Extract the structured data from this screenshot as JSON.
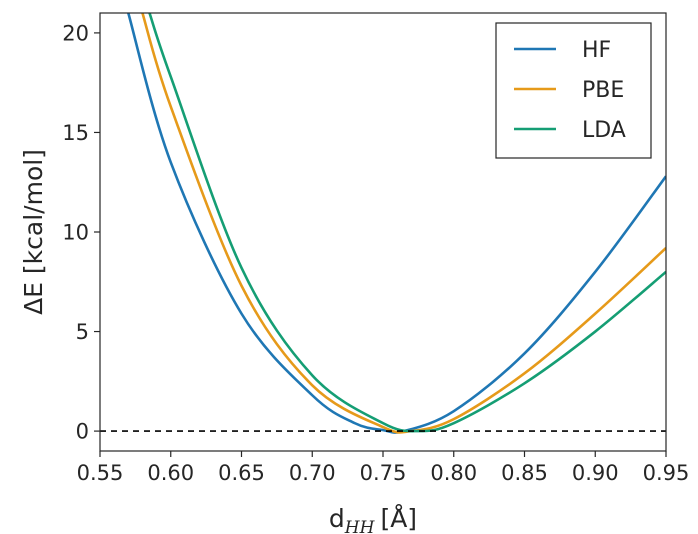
{
  "chart_data": {
    "type": "line",
    "title": "",
    "xlabel": "d",
    "xlabel_subscript": "HH",
    "xlabel_unit": "[Å]",
    "ylabel": "ΔE [kcal/mol]",
    "xlim": [
      0.55,
      0.95
    ],
    "ylim": [
      -1,
      21
    ],
    "xticks": [
      0.55,
      0.6,
      0.65,
      0.7,
      0.75,
      0.8,
      0.85,
      0.9,
      0.95
    ],
    "xtick_labels": [
      "0.55",
      "0.60",
      "0.65",
      "0.70",
      "0.75",
      "0.80",
      "0.85",
      "0.90",
      "0.95"
    ],
    "yticks": [
      0,
      5,
      10,
      15,
      20
    ],
    "ytick_labels": [
      "0",
      "5",
      "10",
      "15",
      "20"
    ],
    "grid": false,
    "legend_position": "top-right",
    "reference_line": {
      "y": 0,
      "style": "dashed",
      "color": "#000000"
    },
    "series": [
      {
        "name": "HF",
        "color": "#1f77b4",
        "x": [
          0.57,
          0.6,
          0.65,
          0.7,
          0.73,
          0.75,
          0.765,
          0.8,
          0.85,
          0.9,
          0.95
        ],
        "y": [
          21.0,
          13.5,
          5.9,
          1.8,
          0.4,
          0.05,
          0.0,
          1.0,
          3.9,
          8.0,
          12.8
        ]
      },
      {
        "name": "PBE",
        "color": "#e69a1a",
        "x": [
          0.58,
          0.6,
          0.65,
          0.7,
          0.75,
          0.77,
          0.8,
          0.85,
          0.9,
          0.95
        ],
        "y": [
          21.0,
          16.3,
          7.3,
          2.3,
          0.2,
          0.0,
          0.6,
          2.9,
          5.9,
          9.2
        ]
      },
      {
        "name": "LDA",
        "color": "#159e74",
        "x": [
          0.585,
          0.6,
          0.65,
          0.7,
          0.75,
          0.775,
          0.8,
          0.85,
          0.9,
          0.95
        ],
        "y": [
          21.0,
          17.8,
          8.2,
          2.8,
          0.4,
          0.0,
          0.4,
          2.4,
          5.0,
          8.0
        ]
      }
    ]
  }
}
